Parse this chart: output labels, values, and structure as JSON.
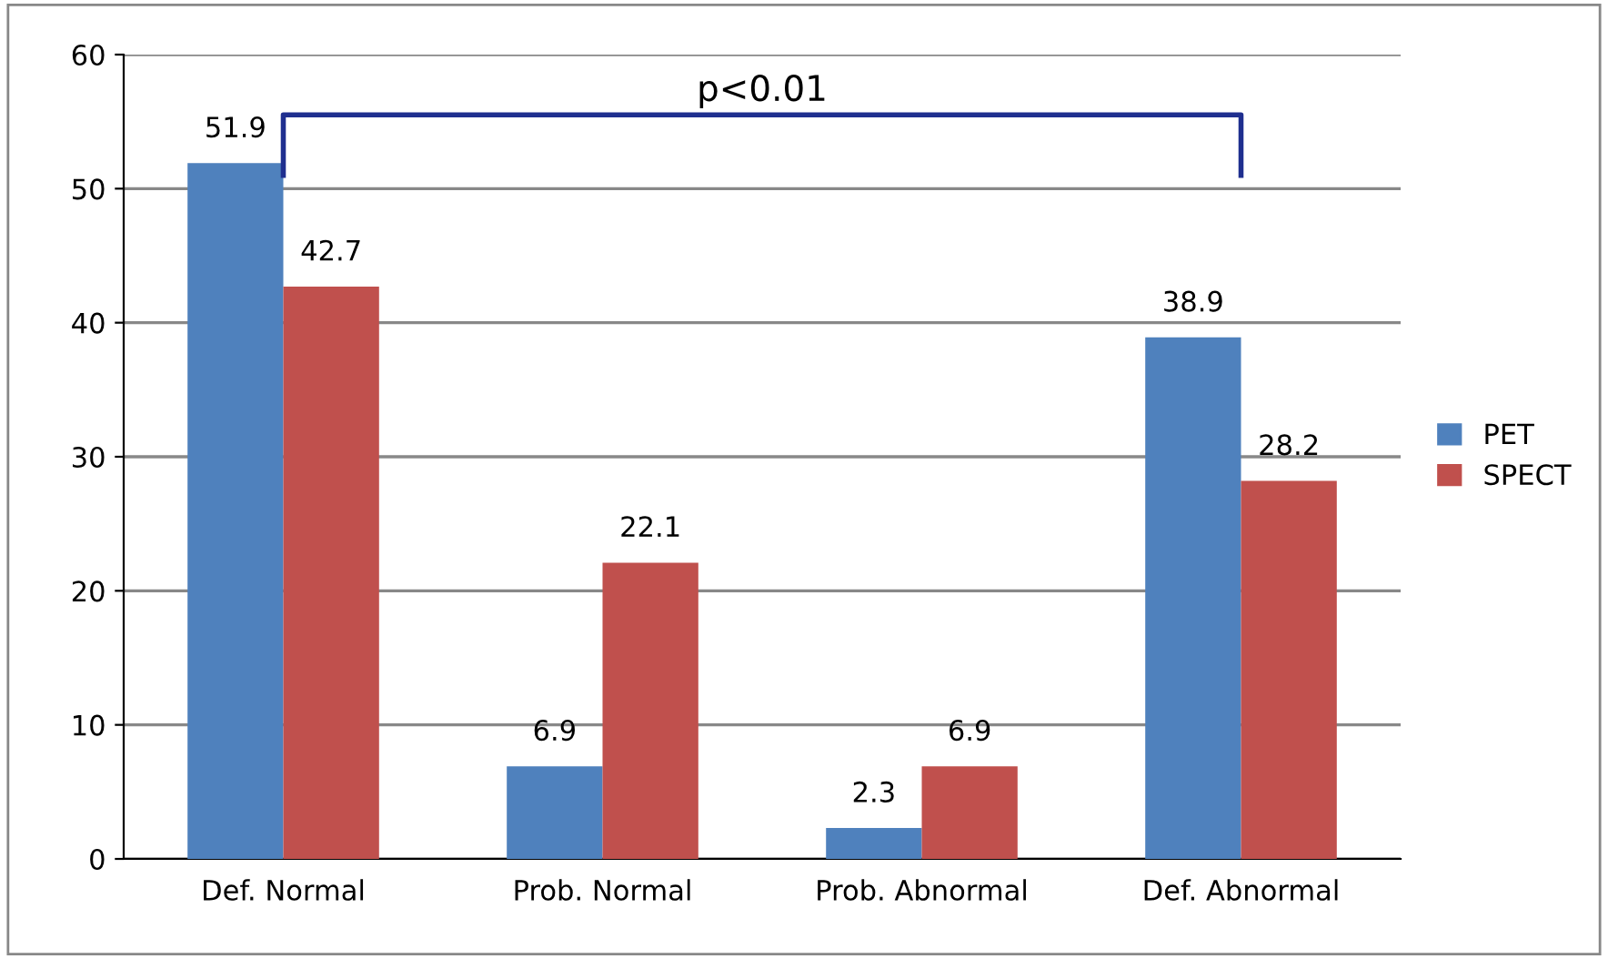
{
  "chart_data": {
    "type": "bar",
    "categories": [
      "Def. Normal",
      "Prob. Normal",
      "Prob. Abnormal",
      "Def. Abnormal"
    ],
    "series": [
      {
        "name": "PET",
        "color": "#4f81bd",
        "values": [
          51.9,
          6.9,
          2.3,
          38.9
        ]
      },
      {
        "name": "SPECT",
        "color": "#c0504d",
        "values": [
          42.7,
          22.1,
          6.9,
          28.2
        ]
      }
    ],
    "ylim": [
      0,
      60
    ],
    "yticks": [
      0,
      10,
      20,
      30,
      40,
      50,
      60
    ],
    "grid": "y",
    "legend": "right",
    "data_labels": true,
    "annotations": [
      "p<0.01"
    ]
  }
}
